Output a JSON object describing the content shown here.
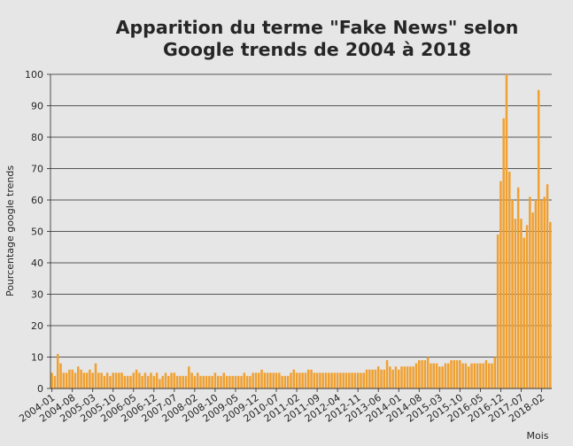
{
  "chart_data": {
    "type": "bar",
    "title_line1": "Apparition du terme \"Fake News\" selon",
    "title_line2": "Google trends de 2004 à 2018",
    "xlabel": "Mois",
    "ylabel": "Pourcentage google trends",
    "ylim": [
      0,
      100
    ],
    "yticks": [
      "0",
      "10",
      "20",
      "30",
      "40",
      "50",
      "60",
      "70",
      "80",
      "90",
      "100"
    ],
    "xtick_labels": [
      "2004-01",
      "2004-08",
      "2005-03",
      "2005-10",
      "2006-05",
      "2006-12",
      "2007-07",
      "2008-02",
      "2008-10",
      "2009-05",
      "2009-12",
      "2010-07",
      "2011-02",
      "2011-09",
      "2012-04",
      "2012-11",
      "2013-06",
      "2014-01",
      "2014-08",
      "2015-03",
      "2015-10",
      "2016-05",
      "2016-12",
      "2017-07",
      "2018-02"
    ],
    "grid": "horizontal",
    "bar_color": "#f0a030",
    "values": [
      5,
      4,
      11,
      8,
      5,
      5,
      6,
      6,
      5,
      7,
      6,
      5,
      5,
      6,
      5,
      8,
      5,
      5,
      4,
      5,
      4,
      5,
      5,
      5,
      5,
      4,
      4,
      4,
      5,
      6,
      5,
      4,
      5,
      4,
      5,
      4,
      5,
      3,
      4,
      5,
      4,
      5,
      5,
      4,
      4,
      4,
      4,
      7,
      5,
      4,
      5,
      4,
      4,
      4,
      4,
      4,
      5,
      4,
      4,
      5,
      4,
      4,
      4,
      4,
      4,
      4,
      5,
      4,
      4,
      5,
      5,
      5,
      6,
      5,
      5,
      5,
      5,
      5,
      5,
      4,
      4,
      4,
      5,
      6,
      5,
      5,
      5,
      5,
      6,
      6,
      5,
      5,
      5,
      5,
      5,
      5,
      5,
      5,
      5,
      5,
      5,
      5,
      5,
      5,
      5,
      5,
      5,
      5,
      6,
      6,
      6,
      6,
      7,
      6,
      6,
      9,
      7,
      6,
      7,
      6,
      7,
      7,
      7,
      7,
      7,
      8,
      9,
      9,
      9,
      10,
      8,
      8,
      8,
      7,
      7,
      8,
      8,
      9,
      9,
      9,
      9,
      8,
      8,
      7,
      8,
      8,
      8,
      8,
      8,
      9,
      8,
      8,
      10,
      49,
      66,
      86,
      100,
      69,
      60,
      54,
      64,
      54,
      48,
      52,
      61,
      56,
      60,
      95,
      60,
      61,
      65,
      53
    ]
  }
}
